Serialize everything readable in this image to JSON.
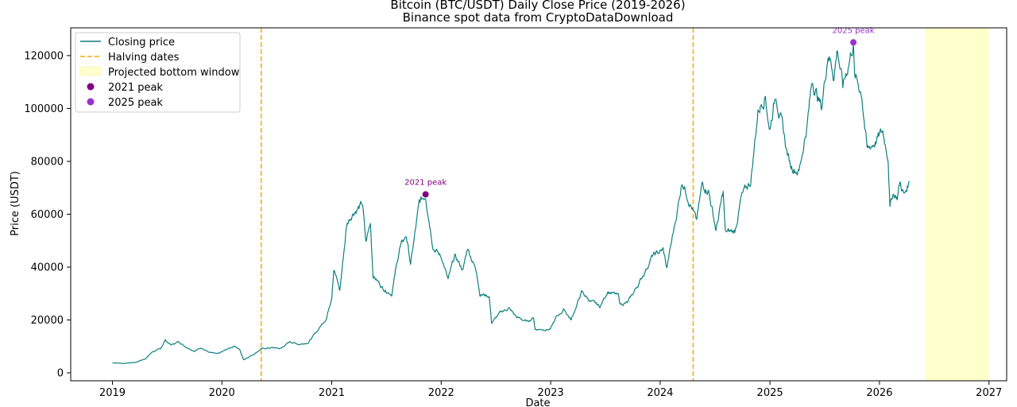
{
  "chart_data": {
    "type": "line",
    "title": "Bitcoin (BTC/USDT) Daily Close Price (2019-2026)",
    "subtitle": "Binance spot data from CryptoDataDownload",
    "xlabel": "Date",
    "ylabel": "Price (USDT)",
    "xlim": [
      "2018-08-15",
      "2027-03-01"
    ],
    "ylim": [
      -3000,
      130500
    ],
    "x_ticks": [
      "2019",
      "2020",
      "2021",
      "2022",
      "2023",
      "2024",
      "2025",
      "2026",
      "2027"
    ],
    "y_ticks": [
      0,
      20000,
      40000,
      60000,
      80000,
      100000,
      120000
    ],
    "y_tick_labels": [
      "0",
      "20000",
      "40000",
      "60000",
      "80000",
      "100000",
      "120000"
    ],
    "grid": false,
    "legend_position": "top-left",
    "series": [
      {
        "name": "Closing price",
        "color": "#0f7f7f",
        "points": [
          [
            "2019-01-01",
            3800
          ],
          [
            "2019-02-10",
            3600
          ],
          [
            "2019-03-20",
            4000
          ],
          [
            "2019-04-20",
            5300
          ],
          [
            "2019-05-15",
            8000
          ],
          [
            "2019-06-10",
            9000
          ],
          [
            "2019-06-26",
            12400
          ],
          [
            "2019-07-15",
            10500
          ],
          [
            "2019-08-10",
            11800
          ],
          [
            "2019-09-01",
            10000
          ],
          [
            "2019-10-01",
            8300
          ],
          [
            "2019-10-26",
            9500
          ],
          [
            "2019-11-20",
            7700
          ],
          [
            "2019-12-18",
            7100
          ],
          [
            "2020-01-15",
            8700
          ],
          [
            "2020-02-13",
            10300
          ],
          [
            "2020-03-01",
            8600
          ],
          [
            "2020-03-13",
            5000
          ],
          [
            "2020-04-15",
            7000
          ],
          [
            "2020-05-10",
            9000
          ],
          [
            "2020-06-15",
            9500
          ],
          [
            "2020-07-15",
            9200
          ],
          [
            "2020-08-15",
            11800
          ],
          [
            "2020-09-15",
            10800
          ],
          [
            "2020-10-15",
            11500
          ],
          [
            "2020-11-15",
            16000
          ],
          [
            "2020-12-15",
            21000
          ],
          [
            "2021-01-01",
            29000
          ],
          [
            "2021-01-08",
            40000
          ],
          [
            "2021-01-28",
            31000
          ],
          [
            "2021-02-20",
            56000
          ],
          [
            "2021-03-13",
            61000
          ],
          [
            "2021-04-14",
            63500
          ],
          [
            "2021-04-25",
            49000
          ],
          [
            "2021-05-10",
            57000
          ],
          [
            "2021-05-19",
            37000
          ],
          [
            "2021-06-21",
            32000
          ],
          [
            "2021-07-20",
            30000
          ],
          [
            "2021-08-15",
            47000
          ],
          [
            "2021-09-07",
            52000
          ],
          [
            "2021-09-21",
            41000
          ],
          [
            "2021-10-20",
            64000
          ],
          [
            "2021-11-10",
            67500
          ],
          [
            "2021-12-05",
            48000
          ],
          [
            "2022-01-05",
            43000
          ],
          [
            "2022-01-24",
            35000
          ],
          [
            "2022-02-15",
            44000
          ],
          [
            "2022-03-15",
            39000
          ],
          [
            "2022-03-30",
            47500
          ],
          [
            "2022-04-30",
            38000
          ],
          [
            "2022-05-10",
            30000
          ],
          [
            "2022-06-10",
            29000
          ],
          [
            "2022-06-18",
            19000
          ],
          [
            "2022-07-20",
            23000
          ],
          [
            "2022-08-14",
            24500
          ],
          [
            "2022-09-10",
            21000
          ],
          [
            "2022-10-15",
            19300
          ],
          [
            "2022-11-05",
            21000
          ],
          [
            "2022-11-10",
            16500
          ],
          [
            "2022-12-31",
            16500
          ],
          [
            "2023-01-20",
            21000
          ],
          [
            "2023-02-15",
            24000
          ],
          [
            "2023-03-10",
            20000
          ],
          [
            "2023-04-14",
            30500
          ],
          [
            "2023-05-15",
            27000
          ],
          [
            "2023-06-15",
            25000
          ],
          [
            "2023-07-10",
            31000
          ],
          [
            "2023-08-15",
            29000
          ],
          [
            "2023-08-20",
            26000
          ],
          [
            "2023-09-15",
            26500
          ],
          [
            "2023-10-25",
            34500
          ],
          [
            "2023-12-05",
            44000
          ],
          [
            "2024-01-11",
            46500
          ],
          [
            "2024-01-23",
            39500
          ],
          [
            "2024-02-28",
            62000
          ],
          [
            "2024-03-14",
            73000
          ],
          [
            "2024-04-15",
            63000
          ],
          [
            "2024-05-01",
            57000
          ],
          [
            "2024-05-20",
            71000
          ],
          [
            "2024-06-10",
            69500
          ],
          [
            "2024-07-05",
            54000
          ],
          [
            "2024-07-29",
            68000
          ],
          [
            "2024-08-05",
            53000
          ],
          [
            "2024-09-06",
            53500
          ],
          [
            "2024-09-27",
            66000
          ],
          [
            "2024-10-29",
            72500
          ],
          [
            "2024-11-22",
            99000
          ],
          [
            "2024-12-17",
            106000
          ],
          [
            "2024-12-30",
            92000
          ],
          [
            "2025-01-21",
            106000
          ],
          [
            "2025-02-26",
            84000
          ],
          [
            "2025-03-10",
            78500
          ],
          [
            "2025-04-08",
            76500
          ],
          [
            "2025-05-05",
            94000
          ],
          [
            "2025-05-22",
            111000
          ],
          [
            "2025-06-22",
            100000
          ],
          [
            "2025-07-14",
            122000
          ],
          [
            "2025-08-02",
            113000
          ],
          [
            "2025-08-14",
            123000
          ],
          [
            "2025-09-01",
            108000
          ],
          [
            "2025-10-06",
            125000
          ],
          [
            "2025-10-10",
            112000
          ],
          [
            "2025-11-03",
            106000
          ],
          [
            "2025-11-21",
            84000
          ],
          [
            "2025-12-20",
            88000
          ],
          [
            "2026-01-12",
            91000
          ],
          [
            "2026-01-30",
            82000
          ],
          [
            "2026-02-05",
            63000
          ],
          [
            "2026-02-15",
            68000
          ],
          [
            "2026-03-01",
            66500
          ],
          [
            "2026-03-10",
            72000
          ],
          [
            "2026-03-25",
            67000
          ],
          [
            "2026-04-10",
            72500
          ]
        ]
      }
    ],
    "halving_dates": {
      "name": "Halving dates",
      "color": "#ffa500",
      "dates": [
        "2020-05-11",
        "2024-04-20"
      ]
    },
    "bottom_window": {
      "name": "Projected bottom window",
      "color": "#ffffcc",
      "start": "2026-06-01",
      "end": "2026-12-31"
    },
    "peaks": [
      {
        "name": "2021 peak",
        "label": "2021 peak",
        "date": "2021-11-10",
        "value": 67500,
        "color": "#800080"
      },
      {
        "name": "2025 peak",
        "label": "2025 peak",
        "date": "2025-10-06",
        "value": 125000,
        "color": "#9932cc"
      }
    ]
  }
}
